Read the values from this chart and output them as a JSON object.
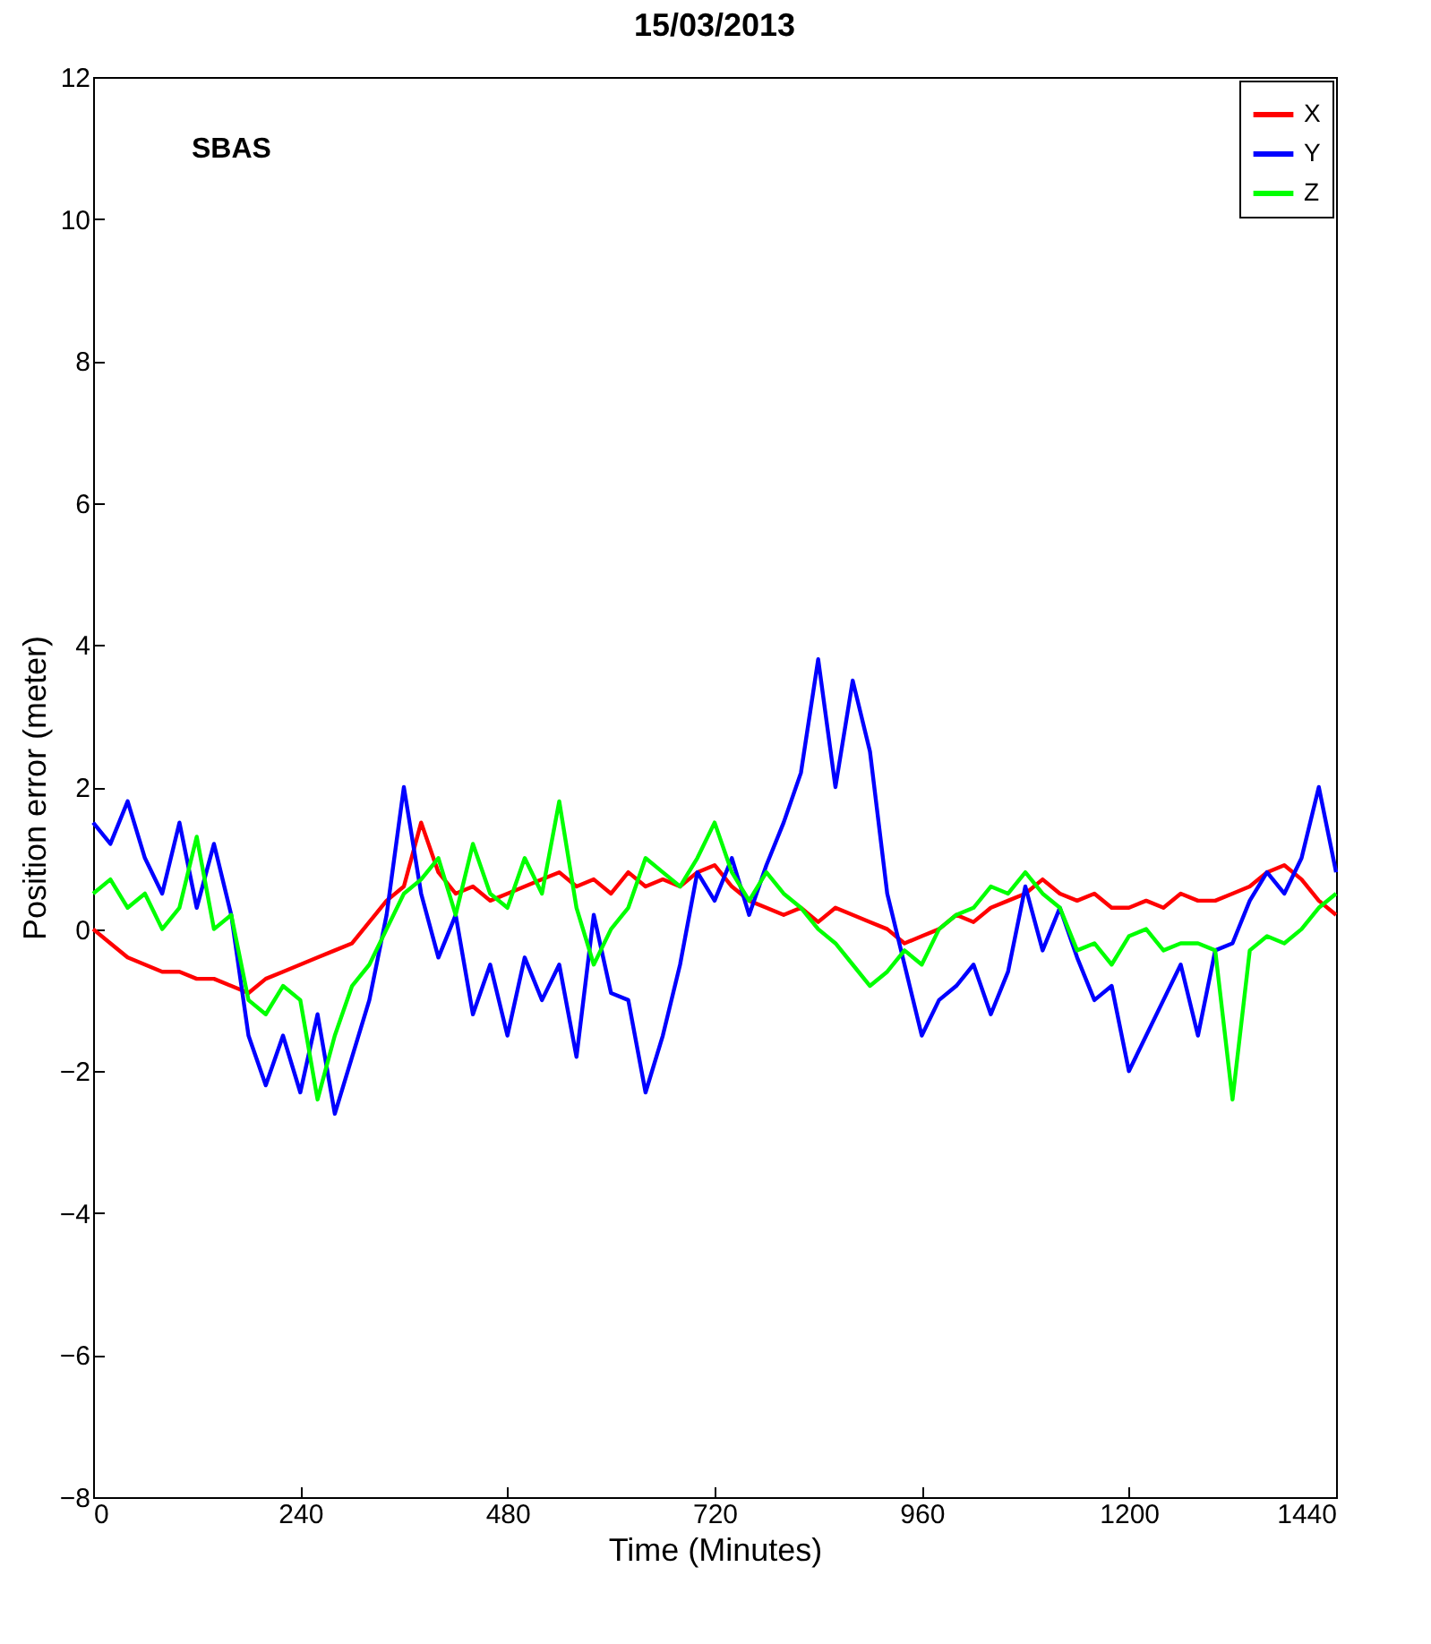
{
  "chart_data": {
    "type": "line",
    "title": "15/03/2013",
    "xlabel": "Time (Minutes)",
    "ylabel": "Position error (meter)",
    "annotations": [
      "SBAS"
    ],
    "x": [
      0,
      20,
      40,
      60,
      80,
      100,
      120,
      140,
      160,
      180,
      200,
      220,
      240,
      260,
      280,
      300,
      320,
      340,
      360,
      380,
      400,
      420,
      440,
      460,
      480,
      500,
      520,
      540,
      560,
      580,
      600,
      620,
      640,
      660,
      680,
      700,
      720,
      740,
      760,
      780,
      800,
      820,
      840,
      860,
      880,
      900,
      920,
      940,
      960,
      980,
      1000,
      1020,
      1040,
      1060,
      1080,
      1100,
      1120,
      1140,
      1160,
      1180,
      1200,
      1220,
      1240,
      1260,
      1280,
      1300,
      1320,
      1340,
      1360,
      1380,
      1400,
      1420,
      1440
    ],
    "series": [
      {
        "name": "X",
        "color": "#ff0000",
        "values": [
          0,
          -0.2,
          -0.4,
          -0.5,
          -0.6,
          -0.6,
          -0.7,
          -0.7,
          -0.8,
          -0.9,
          -0.7,
          -0.6,
          -0.5,
          -0.4,
          -0.3,
          -0.2,
          0.1,
          0.4,
          0.6,
          1.5,
          0.8,
          0.5,
          0.6,
          0.4,
          0.5,
          0.6,
          0.7,
          0.8,
          0.6,
          0.7,
          0.5,
          0.8,
          0.6,
          0.7,
          0.6,
          0.8,
          0.9,
          0.6,
          0.4,
          0.3,
          0.2,
          0.3,
          0.1,
          0.3,
          0.2,
          0.1,
          0.0,
          -0.2,
          -0.1,
          0.0,
          0.2,
          0.1,
          0.3,
          0.4,
          0.5,
          0.7,
          0.5,
          0.4,
          0.5,
          0.3,
          0.3,
          0.4,
          0.3,
          0.5,
          0.4,
          0.4,
          0.5,
          0.6,
          0.8,
          0.9,
          0.7,
          0.4,
          0.2
        ]
      },
      {
        "name": "Y",
        "color": "#0000ff",
        "values": [
          1.5,
          1.2,
          1.8,
          1.0,
          0.5,
          1.5,
          0.3,
          1.2,
          0.2,
          -1.5,
          -2.2,
          -1.5,
          -2.3,
          -1.2,
          -2.6,
          -1.8,
          -1.0,
          0.2,
          2.0,
          0.5,
          -0.4,
          0.2,
          -1.2,
          -0.5,
          -1.5,
          -0.4,
          -1.0,
          -0.5,
          -1.8,
          0.2,
          -0.9,
          -1.0,
          -2.3,
          -1.5,
          -0.5,
          0.8,
          0.4,
          1.0,
          0.2,
          0.9,
          1.5,
          2.2,
          3.8,
          2.0,
          3.5,
          2.5,
          0.5,
          -0.5,
          -1.5,
          -1.0,
          -0.8,
          -0.5,
          -1.2,
          -0.6,
          0.6,
          -0.3,
          0.3,
          -0.4,
          -1.0,
          -0.8,
          -2.0,
          -1.5,
          -1.0,
          -0.5,
          -1.5,
          -0.3,
          -0.2,
          0.4,
          0.8,
          0.5,
          1.0,
          2.0,
          0.8
        ]
      },
      {
        "name": "Z",
        "color": "#00ff00",
        "values": [
          0.5,
          0.7,
          0.3,
          0.5,
          0.0,
          0.3,
          1.3,
          0.0,
          0.2,
          -1.0,
          -1.2,
          -0.8,
          -1.0,
          -2.4,
          -1.5,
          -0.8,
          -0.5,
          0.0,
          0.5,
          0.7,
          1.0,
          0.2,
          1.2,
          0.5,
          0.3,
          1.0,
          0.5,
          1.8,
          0.3,
          -0.5,
          0.0,
          0.3,
          1.0,
          0.8,
          0.6,
          1.0,
          1.5,
          0.8,
          0.4,
          0.8,
          0.5,
          0.3,
          0.0,
          -0.2,
          -0.5,
          -0.8,
          -0.6,
          -0.3,
          -0.5,
          0.0,
          0.2,
          0.3,
          0.6,
          0.5,
          0.8,
          0.5,
          0.3,
          -0.3,
          -0.2,
          -0.5,
          -0.1,
          0.0,
          -0.3,
          -0.2,
          -0.2,
          -0.3,
          -2.4,
          -0.3,
          -0.1,
          -0.2,
          0.0,
          0.3,
          0.5
        ]
      }
    ],
    "xlim": [
      0,
      1440
    ],
    "xticks": [
      0,
      240,
      480,
      720,
      960,
      1200,
      1440
    ],
    "ylim": [
      -8,
      12
    ],
    "yticks": [
      -8,
      -6,
      -4,
      -2,
      0,
      2,
      4,
      6,
      8,
      10,
      12
    ],
    "grid": false,
    "legend": "top right",
    "marker": "none",
    "line_style": "solid"
  }
}
